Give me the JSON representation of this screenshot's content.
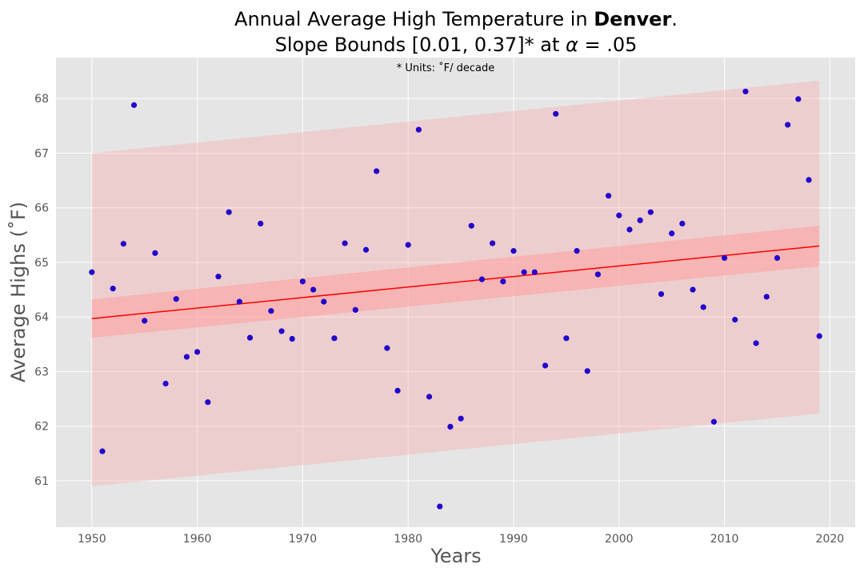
{
  "chart_data": {
    "type": "scatter",
    "title_prefix": "Annual Average High Temperature in ",
    "title_city": "Denver",
    "title_suffix": ".",
    "subtitle_lead": "Slope Bounds [0.01, 0.37]* at ",
    "subtitle_alpha": "α",
    "subtitle_tail": " = .05",
    "annotation": "* Units: ˚F/ decade",
    "xlabel": "Years",
    "ylabel": "Average Highs (˚F)",
    "xlim": [
      1946.6,
      2022.4
    ],
    "ylim": [
      60.15,
      68.75
    ],
    "xticks": [
      1950,
      1960,
      1970,
      1980,
      1990,
      2000,
      2010,
      2020
    ],
    "yticks": [
      61,
      62,
      63,
      64,
      65,
      66,
      67,
      68
    ],
    "grid": true,
    "colors": {
      "background": "#e5e5e5",
      "points": "#2200cc",
      "fit_line": "#ff0000",
      "band": "#ff9999"
    },
    "fit_line": {
      "x": [
        1950,
        2019
      ],
      "y": [
        63.97,
        65.3
      ]
    },
    "confidence_band": {
      "x": [
        1950,
        2019
      ],
      "lower": [
        63.62,
        64.93
      ],
      "upper": [
        64.32,
        65.67
      ]
    },
    "prediction_band": {
      "x": [
        1950,
        2019
      ],
      "lower": [
        60.9,
        62.23
      ],
      "upper": [
        67.0,
        68.33
      ]
    },
    "x": [
      1950,
      1951,
      1952,
      1953,
      1954,
      1955,
      1956,
      1957,
      1958,
      1959,
      1960,
      1961,
      1962,
      1963,
      1964,
      1965,
      1966,
      1967,
      1968,
      1969,
      1970,
      1971,
      1972,
      1973,
      1974,
      1975,
      1976,
      1977,
      1978,
      1979,
      1980,
      1981,
      1982,
      1983,
      1984,
      1985,
      1986,
      1987,
      1988,
      1989,
      1990,
      1991,
      1992,
      1993,
      1994,
      1995,
      1996,
      1997,
      1998,
      1999,
      2000,
      2001,
      2002,
      2003,
      2004,
      2005,
      2006,
      2007,
      2008,
      2009,
      2010,
      2011,
      2012,
      2013,
      2014,
      2015,
      2016,
      2017,
      2018,
      2019
    ],
    "y": [
      64.82,
      61.54,
      64.52,
      65.34,
      67.88,
      63.93,
      65.17,
      62.78,
      64.33,
      63.27,
      63.36,
      62.44,
      64.74,
      65.92,
      64.28,
      63.62,
      65.71,
      64.11,
      63.74,
      63.6,
      64.65,
      64.5,
      64.28,
      63.61,
      65.35,
      64.13,
      65.23,
      66.67,
      63.43,
      62.65,
      65.32,
      67.43,
      62.54,
      60.53,
      61.99,
      62.14,
      65.67,
      64.69,
      65.35,
      64.65,
      65.21,
      64.82,
      64.82,
      63.11,
      67.72,
      63.61,
      65.21,
      63.01,
      64.78,
      66.22,
      65.86,
      65.6,
      65.77,
      65.92,
      64.42,
      65.53,
      65.71,
      64.5,
      64.18,
      62.08,
      65.08,
      63.95,
      68.13,
      63.52,
      64.37,
      65.08,
      67.52,
      67.99,
      66.51,
      63.65
    ]
  }
}
